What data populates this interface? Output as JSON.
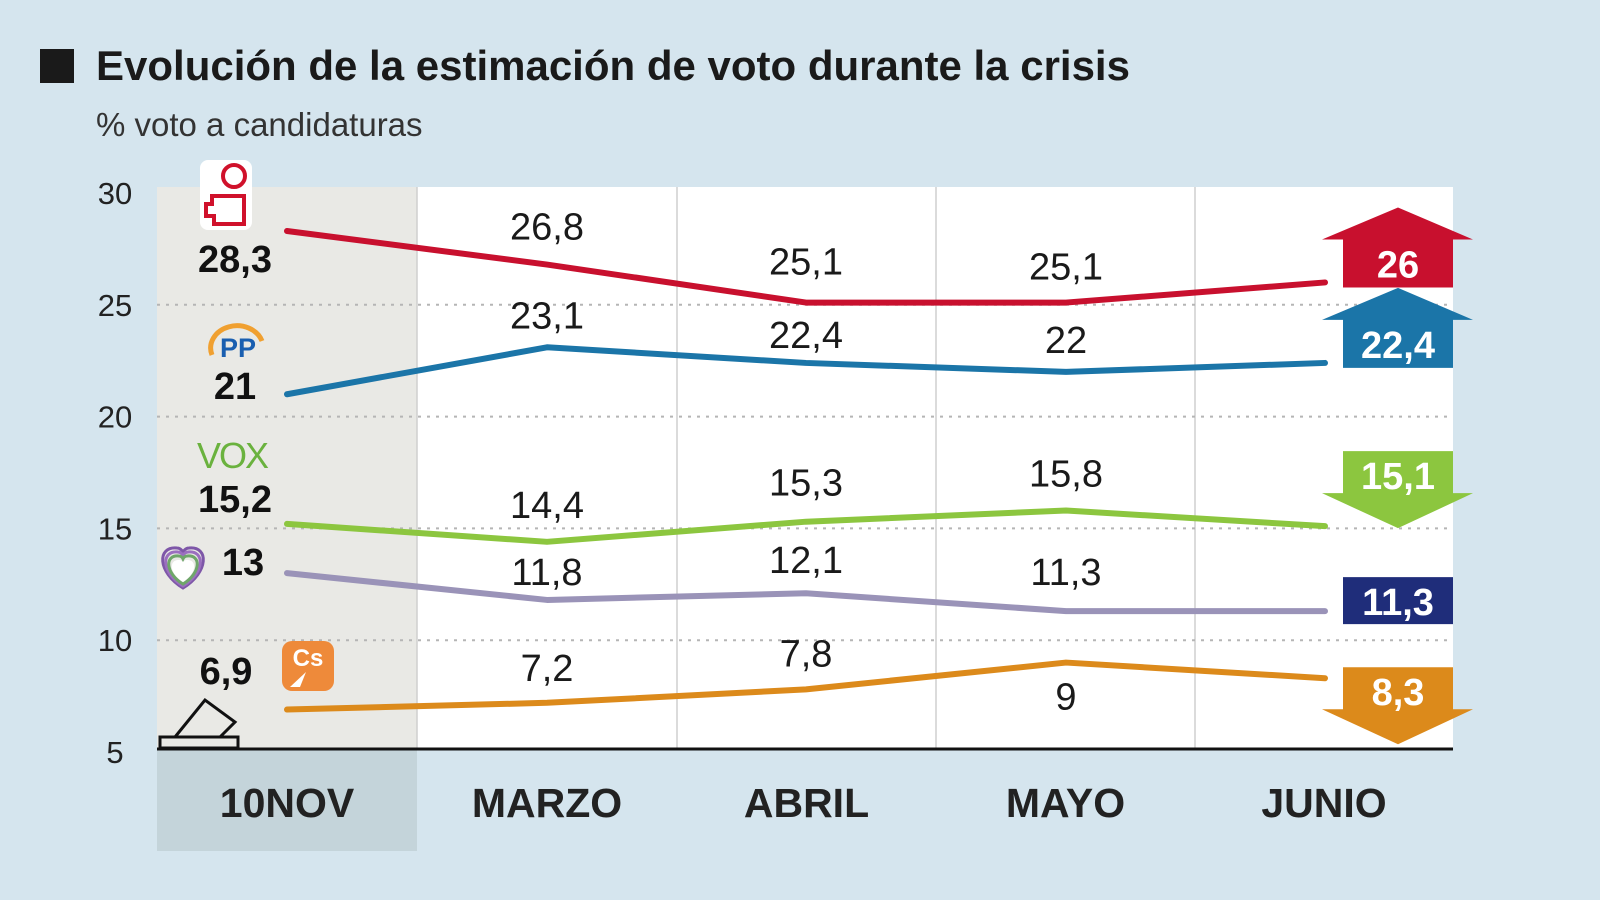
{
  "title": "Evolución de la estimación de voto durante la crisis",
  "subtitle": "% voto a candidaturas",
  "chart_data": {
    "type": "line",
    "title": "Evolución de la estimación de voto durante la crisis",
    "subtitle": "% voto a candidaturas",
    "categories": [
      "10NOV",
      "MARZO",
      "ABRIL",
      "MAYO",
      "JUNIO"
    ],
    "ylim": [
      5,
      30
    ],
    "yticks": [
      30,
      25,
      20,
      15,
      10,
      5
    ],
    "grid": true,
    "series": [
      {
        "party": "PSOE",
        "logo": "psoe-rose-fist-logo",
        "color": "#c8102e",
        "labels": [
          "28,3",
          "26,8",
          "25,1",
          "25,1",
          "26"
        ],
        "values": [
          28.3,
          26.8,
          25.1,
          25.1,
          26
        ],
        "trend": "up"
      },
      {
        "party": "PP",
        "logo": "pp-logo",
        "color": "#1b75a8",
        "labels": [
          "21",
          "23,1",
          "22,4",
          "22",
          "22,4"
        ],
        "values": [
          21,
          23.1,
          22.4,
          22,
          22.4
        ],
        "trend": "up"
      },
      {
        "party": "VOX",
        "logo": "vox-logo",
        "color": "#8cc63f",
        "labels": [
          "15,2",
          "14,4",
          "15,3",
          "15,8",
          "15,1"
        ],
        "values": [
          15.2,
          14.4,
          15.3,
          15.8,
          15.1
        ],
        "trend": "down"
      },
      {
        "party": "Unidas Podemos",
        "logo": "heart-logo",
        "color": "#9a93b8",
        "box_color": "#1f2d7a",
        "labels": [
          "13",
          "11,8",
          "12,1",
          "11,3",
          "11,3"
        ],
        "values": [
          13,
          11.8,
          12.1,
          11.3,
          11.3
        ],
        "trend": "equal"
      },
      {
        "party": "Cs",
        "logo": "cs-logo",
        "color": "#dc8a1b",
        "labels": [
          "6,9",
          "7,2",
          "7,8",
          "9",
          "8,3"
        ],
        "values": [
          6.9,
          7.2,
          7.8,
          9,
          8.3
        ],
        "trend": "down"
      }
    ],
    "logo_text": {
      "PP": "PP",
      "VOX": "VOX",
      "Cs": "Cs"
    }
  }
}
